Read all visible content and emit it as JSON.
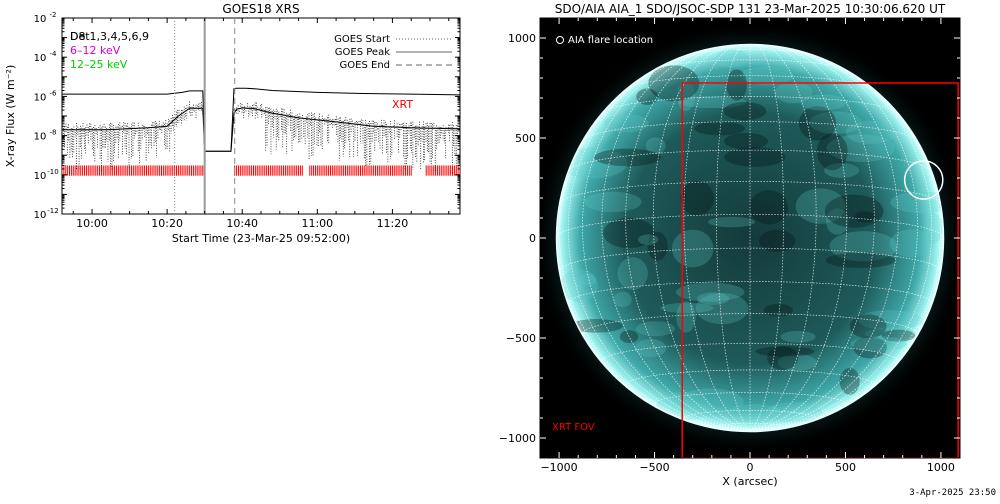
{
  "footer_timestamp": "3-Apr-2025 23:50",
  "chart_data": [
    {
      "type": "line",
      "title": "GOES18 XRS",
      "xlabel": "Start Time (23-Mar-25 09:52:00)",
      "ylabel": "X-ray Flux (W m⁻²)",
      "x_tick_labels": [
        "10:00",
        "10:20",
        "10:40",
        "11:00",
        "11:20"
      ],
      "x_ticks_minutes": [
        600,
        620,
        640,
        660,
        680
      ],
      "xlim_minutes": [
        592,
        698
      ],
      "y_scale": "log",
      "ylim": [
        1e-12,
        0.01
      ],
      "y_tick_bases": [
        "10",
        "10",
        "10",
        "10",
        "10",
        "10"
      ],
      "y_tick_exponents": [
        "-2",
        "-4",
        "-6",
        "-8",
        "-10",
        "-12"
      ],
      "y_tick_values": [
        0.01,
        0.0001,
        1e-06,
        1e-08,
        1e-10,
        1e-12
      ],
      "info_labels": [
        {
          "text": "Det1,3,4,5,6,9",
          "color": "#000000"
        },
        {
          "text": "6–12 keV",
          "color": "#d400d4"
        },
        {
          "text": "12–25 keV",
          "color": "#00cc00"
        }
      ],
      "overlap_label": "D8",
      "legend": [
        {
          "label": "GOES Start",
          "style": "dotted"
        },
        {
          "label": "GOES Peak",
          "style": "solid"
        },
        {
          "label": "GOES End",
          "style": "dashed"
        }
      ],
      "markers_minutes": {
        "goes_start": 622,
        "goes_peak": 630,
        "goes_end": 638
      },
      "series": [
        {
          "name": "long channel",
          "x": [
            592,
            610,
            620,
            624,
            626,
            629.5,
            630,
            631,
            636,
            637,
            637.8,
            638.3,
            641,
            644,
            648,
            660,
            672,
            685,
            698
          ],
          "y": [
            1.3e-06,
            1.3e-06,
            1.3e-06,
            1.6e-06,
            1.9e-06,
            1.9e-06,
            1.6e-09,
            1.6e-09,
            1.6e-09,
            1.6e-09,
            2.5e-06,
            2.6e-06,
            2.6e-06,
            2.4e-06,
            2e-06,
            1.6e-06,
            1.4e-06,
            1.3e-06,
            1.2e-06
          ]
        },
        {
          "name": "short channel",
          "x": [
            592,
            604,
            615,
            620,
            623,
            626,
            629.5,
            630,
            631,
            636,
            637,
            637.8,
            638.5,
            640,
            643,
            648,
            655,
            665,
            675,
            685,
            698
          ],
          "y": [
            2e-08,
            2e-08,
            2.5e-08,
            3e-08,
            1e-07,
            2.5e-07,
            2.5e-07,
            1.6e-09,
            1.6e-09,
            1.6e-09,
            1.6e-09,
            1.3e-07,
            2.2e-07,
            2.6e-07,
            2.4e-07,
            1.4e-07,
            8e-08,
            5e-08,
            3e-08,
            2.5e-08,
            2.2e-08
          ]
        }
      ],
      "xrt_label": "XRT",
      "xrt_label_color": "#ff0000",
      "xrt_coverage_minutes": [
        [
          592,
          630
        ],
        [
          638,
          656
        ],
        [
          658,
          685
        ],
        [
          689,
          698
        ]
      ]
    },
    {
      "type": "image",
      "title": "SDO/AIA AIA_1 SDO/JSOC-SDP 131 23-Mar-2025 10:30:06.620 UT",
      "xlabel": "X (arcsec)",
      "ylabel": "",
      "x_tick_labels": [
        "−1000",
        "−500",
        "0",
        "500",
        "1000"
      ],
      "x_ticks": [
        -1000,
        -500,
        0,
        500,
        1000
      ],
      "y_tick_labels": [
        "1000",
        "500",
        "0",
        "−500",
        "−1000"
      ],
      "y_ticks": [
        1000,
        500,
        0,
        -500,
        -1000
      ],
      "xlim": [
        -1100,
        1100
      ],
      "ylim": [
        -1100,
        1100
      ],
      "disk_radius_arcsec": 990,
      "grid_spacing_deg": 10,
      "flare_location_label": "AIA flare location",
      "flare_location_arcsec": [
        910,
        290
      ],
      "flare_circle_radius_arcsec": 100,
      "fov_label": "XRT FOV",
      "fov_color": "#ff0000",
      "fov_box_arcsec": {
        "x0": -355,
        "x1": 1090,
        "y0": -1100,
        "y1": 775
      },
      "colormap": [
        "#000000",
        "#0d2a2a",
        "#2a7878",
        "#78e6e6",
        "#ffffff"
      ]
    }
  ]
}
